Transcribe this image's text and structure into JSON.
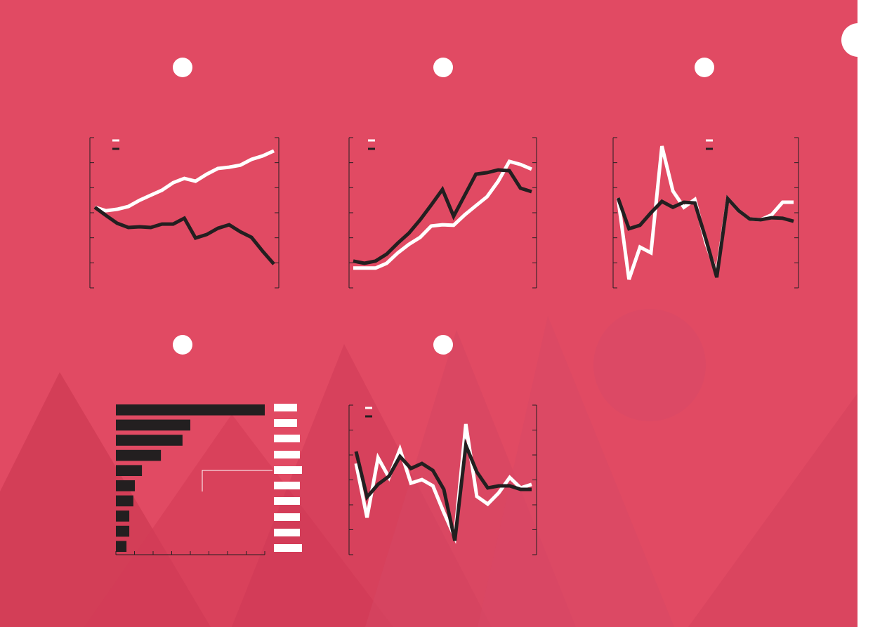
{
  "chart_data": [
    {
      "type": "line",
      "ylim": [
        0,
        6
      ],
      "yticks": [
        0,
        1,
        2,
        3,
        4,
        5,
        6
      ],
      "categories": [
        null,
        null,
        null,
        null,
        null,
        null,
        null,
        null,
        null,
        null,
        null,
        null,
        null,
        null,
        null,
        null,
        null
      ],
      "series": [
        {
          "color": "#ffffff",
          "values": [
            3.22,
            3.08,
            3.14,
            3.25,
            3.5,
            3.7,
            3.9,
            4.2,
            4.37,
            4.26,
            4.54,
            4.77,
            4.82,
            4.9,
            5.13,
            5.27,
            5.47
          ]
        },
        {
          "color": "#231f20",
          "values": [
            3.22,
            2.89,
            2.58,
            2.41,
            2.44,
            2.41,
            2.55,
            2.55,
            2.78,
            1.99,
            2.13,
            2.38,
            2.52,
            2.24,
            2.02,
            1.46,
            0.95
          ]
        }
      ]
    },
    {
      "type": "line",
      "ylim": [
        0,
        6
      ],
      "yticks": [
        0,
        1,
        2,
        3,
        4,
        5,
        6
      ],
      "categories": [
        null,
        null,
        null,
        null,
        null,
        null,
        null,
        null,
        null,
        null,
        null,
        null,
        null,
        null,
        null,
        null,
        null
      ],
      "series": [
        {
          "color": "#ffffff",
          "values": [
            0.79,
            0.79,
            0.79,
            0.98,
            1.4,
            1.74,
            2.02,
            2.47,
            2.52,
            2.5,
            2.92,
            3.28,
            3.64,
            4.26,
            5.05,
            4.93,
            4.74
          ]
        },
        {
          "color": "#231f20",
          "values": [
            1.07,
            0.98,
            1.07,
            1.35,
            1.79,
            2.19,
            2.72,
            3.31,
            3.93,
            2.86,
            3.7,
            4.54,
            4.6,
            4.71,
            4.68,
            3.98,
            3.84
          ]
        }
      ]
    },
    {
      "type": "line",
      "ylim": [
        0,
        6
      ],
      "yticks": [
        0,
        1,
        2,
        3,
        4,
        5,
        6
      ],
      "categories": [
        null,
        null,
        null,
        null,
        null,
        null,
        null,
        null,
        null,
        null,
        null,
        null,
        null,
        null,
        null,
        null,
        null
      ],
      "series": [
        {
          "color": "#ffffff",
          "values": [
            3.59,
            0.34,
            1.63,
            1.4,
            5.66,
            3.87,
            3.22,
            3.53,
            1.82,
            0.56,
            3.56,
            3.08,
            2.75,
            2.72,
            2.92,
            3.42,
            3.42
          ]
        },
        {
          "color": "#231f20",
          "values": [
            3.59,
            2.36,
            2.5,
            3.0,
            3.45,
            3.22,
            3.42,
            3.39,
            1.96,
            0.42,
            3.56,
            3.08,
            2.75,
            2.72,
            2.8,
            2.78,
            2.66
          ]
        }
      ]
    },
    {
      "type": "barh",
      "xlim": [
        0,
        8
      ],
      "xticks": [
        0,
        1,
        2,
        3,
        4,
        5,
        6,
        7,
        8
      ],
      "color": "#231f20",
      "categories": [
        null,
        null,
        null,
        null,
        null,
        null,
        null,
        null,
        null,
        null
      ],
      "values": [
        8.0,
        4.0,
        3.58,
        2.42,
        1.4,
        1.02,
        0.94,
        0.72,
        0.72,
        0.57
      ]
    },
    {
      "type": "line",
      "ylim": [
        0,
        6
      ],
      "yticks": [
        0,
        1,
        2,
        3,
        4,
        5,
        6
      ],
      "categories": [
        null,
        null,
        null,
        null,
        null,
        null,
        null,
        null,
        null,
        null,
        null,
        null,
        null,
        null,
        null,
        null,
        null
      ],
      "series": [
        {
          "color": "#ffffff",
          "values": [
            3.66,
            1.49,
            3.89,
            3.1,
            4.23,
            2.87,
            3.01,
            2.76,
            1.69,
            0.7,
            5.24,
            2.34,
            2.03,
            2.48,
            3.1,
            2.68,
            2.82
          ]
        },
        {
          "color": "#231f20",
          "values": [
            4.14,
            2.31,
            2.82,
            3.15,
            3.94,
            3.46,
            3.66,
            3.38,
            2.62,
            0.56,
            4.39,
            3.32,
            2.68,
            2.76,
            2.76,
            2.62,
            2.62
          ]
        }
      ]
    }
  ]
}
